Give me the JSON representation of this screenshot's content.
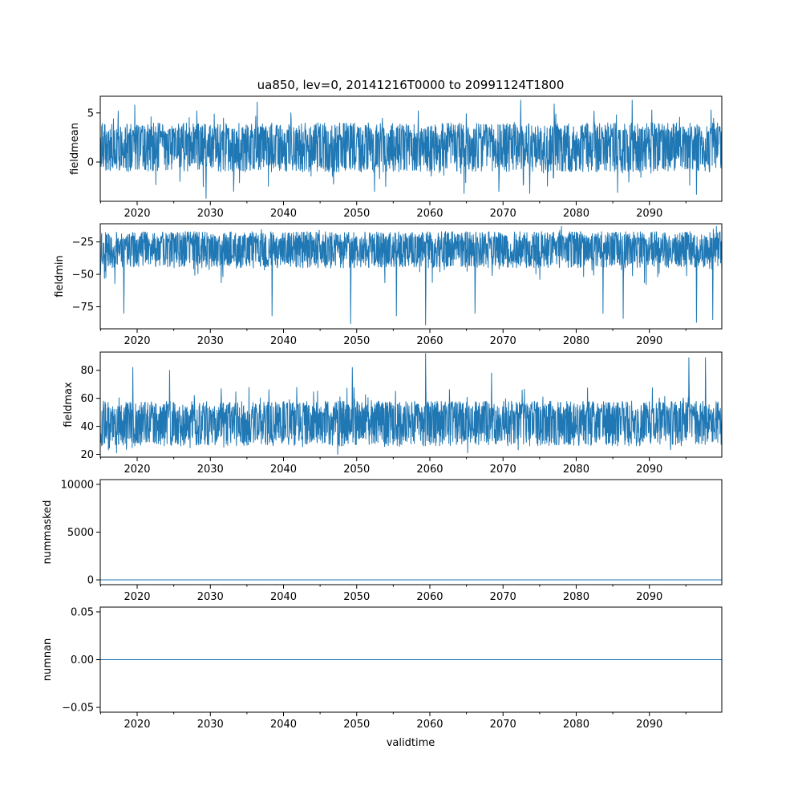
{
  "chart_data": {
    "type": "line",
    "title": "ua850, lev=0, 20141216T0000 to 20991124T1800",
    "xlabel": "validtime",
    "xlim": [
      "2014-12-16T00:00",
      "2099-11-24T18:00"
    ],
    "x_ticks": [
      "2020",
      "2030",
      "2040",
      "2050",
      "2060",
      "2070",
      "2080",
      "2090"
    ],
    "x_minor_ticks": [
      "2015",
      "2025",
      "2035",
      "2045",
      "2055",
      "2065",
      "2075",
      "2085",
      "2095"
    ],
    "line_color": "#1f77b4",
    "grid": false,
    "legend": "none",
    "panels": [
      {
        "ylabel": "fieldmean",
        "ylim": [
          -4.0,
          6.7
        ],
        "y_ticks": [
          {
            "value": 5,
            "label": "5"
          },
          {
            "value": 0,
            "label": "0"
          }
        ],
        "envelope": {
          "typical_low": -1.0,
          "typical_high": 4.0,
          "deep_low": -2.5,
          "deep_high": 5.0,
          "peaks": [
            {
              "x": "2017-06",
              "y": 5.2
            },
            {
              "x": "2019-09",
              "y": 5.8
            },
            {
              "x": "2028-03",
              "y": 5.2
            },
            {
              "x": "2036-06",
              "y": 6.1
            },
            {
              "x": "2041-01",
              "y": 5.0
            },
            {
              "x": "2058-06",
              "y": 5.2
            },
            {
              "x": "2072-06",
              "y": 6.3
            },
            {
              "x": "2077-01",
              "y": 5.9
            },
            {
              "x": "2082-06",
              "y": 5.2
            },
            {
              "x": "2087-09",
              "y": 6.3
            },
            {
              "x": "2090-05",
              "y": 5.3
            },
            {
              "x": "2098-06",
              "y": 5.3
            }
          ],
          "troughs": [
            {
              "x": "2029-06",
              "y": -3.7
            },
            {
              "x": "2033-03",
              "y": -3.0
            },
            {
              "x": "2052-06",
              "y": -3.0
            },
            {
              "x": "2064-09",
              "y": -3.2
            },
            {
              "x": "2069-06",
              "y": -3.0
            },
            {
              "x": "2073-09",
              "y": -3.2
            },
            {
              "x": "2085-09",
              "y": -3.1
            },
            {
              "x": "2096-06",
              "y": -3.3
            }
          ]
        }
      },
      {
        "ylabel": "fieldmin",
        "ylim": [
          -92,
          -11
        ],
        "y_ticks": [
          {
            "value": -25,
            "label": "−25"
          },
          {
            "value": -50,
            "label": "−50"
          },
          {
            "value": -75,
            "label": "−75"
          }
        ],
        "envelope": {
          "typical_low": -45,
          "typical_high": -17,
          "deep_low": -58,
          "deep_high": -15,
          "peaks": [
            {
              "x": "2078-01",
              "y": -13
            },
            {
              "x": "2086-06",
              "y": -14
            },
            {
              "x": "2099-03",
              "y": -13
            }
          ],
          "troughs": [
            {
              "x": "2018-03",
              "y": -80
            },
            {
              "x": "2038-06",
              "y": -82
            },
            {
              "x": "2049-03",
              "y": -88
            },
            {
              "x": "2055-06",
              "y": -82
            },
            {
              "x": "2059-06",
              "y": -89
            },
            {
              "x": "2066-03",
              "y": -80
            },
            {
              "x": "2083-09",
              "y": -80
            },
            {
              "x": "2086-06",
              "y": -84
            },
            {
              "x": "2096-06",
              "y": -87
            },
            {
              "x": "2098-09",
              "y": -85
            }
          ]
        }
      },
      {
        "ylabel": "fieldmax",
        "ylim": [
          18,
          93
        ],
        "y_ticks": [
          {
            "value": 80,
            "label": "80"
          },
          {
            "value": 60,
            "label": "60"
          },
          {
            "value": 40,
            "label": "40"
          },
          {
            "value": 20,
            "label": "20"
          }
        ],
        "envelope": {
          "typical_low": 26,
          "typical_high": 58,
          "deep_low": 23,
          "deep_high": 68,
          "peaks": [
            {
              "x": "2019-06",
              "y": 82
            },
            {
              "x": "2024-06",
              "y": 80
            },
            {
              "x": "2049-06",
              "y": 82
            },
            {
              "x": "2059-06",
              "y": 92
            },
            {
              "x": "2068-06",
              "y": 78
            },
            {
              "x": "2095-06",
              "y": 89
            },
            {
              "x": "2097-09",
              "y": 89
            }
          ],
          "troughs": [
            {
              "x": "2017-03",
              "y": 21
            },
            {
              "x": "2047-06",
              "y": 20
            },
            {
              "x": "2065-03",
              "y": 21
            }
          ]
        }
      },
      {
        "ylabel": "nummasked",
        "ylim": [
          -500,
          10500
        ],
        "y_ticks": [
          {
            "value": 10000,
            "label": "10000"
          },
          {
            "value": 5000,
            "label": "5000"
          },
          {
            "value": 0,
            "label": "0"
          }
        ],
        "constant": 0
      },
      {
        "ylabel": "numnan",
        "ylim": [
          -0.055,
          0.055
        ],
        "y_ticks": [
          {
            "value": 0.05,
            "label": "0.05"
          },
          {
            "value": 0.0,
            "label": "0.00"
          },
          {
            "value": -0.05,
            "label": "−0.05"
          }
        ],
        "constant": 0
      }
    ]
  }
}
